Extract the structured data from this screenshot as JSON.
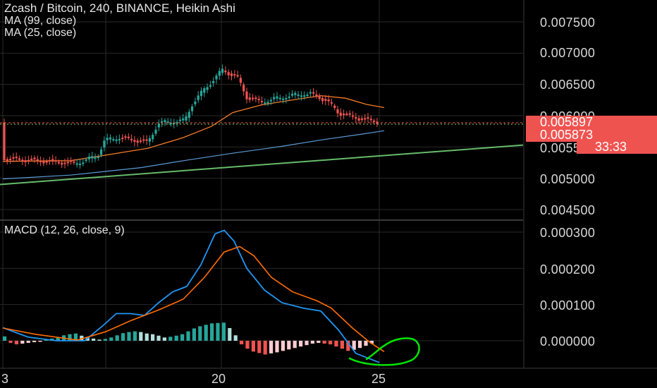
{
  "legend": {
    "title": "Zcash / Bitcoin, 240, BINANCE, Heikin Ashi",
    "ma99": "MA (99, close)",
    "ma25": "MA (25, close)",
    "macd": "MACD (12, 26, close, 9)"
  },
  "price_axis": {
    "ticks": [
      "0.007500",
      "0.007000",
      "0.006500",
      "0.006000",
      "0.005500",
      "0.005000",
      "0.004500"
    ],
    "last_price": "0.005897",
    "ma_value": "0.005873",
    "countdown": "33:33"
  },
  "macd_axis": {
    "ticks": [
      "0.000300",
      "0.000200",
      "0.000100",
      "0.000000"
    ]
  },
  "time_axis": {
    "labels": [
      "3",
      "20",
      "25"
    ]
  },
  "colors": {
    "up": "#26a69a",
    "down": "#ef5350",
    "ma99": "#5b9bd5",
    "ma25": "#f57c2a",
    "trendline": "#66bb6a",
    "macd_line": "#2196f3",
    "signal_line": "#ff6d00",
    "annotation": "#00e600"
  },
  "chart_data": [
    {
      "type": "candlestick",
      "title": "Zcash / Bitcoin, 240, BINANCE, Heikin Ashi",
      "ylim": [
        0.0043,
        0.0079
      ],
      "x": [
        "19",
        "20",
        "21",
        "22",
        "23",
        "24",
        "25",
        "26",
        "27",
        "28"
      ],
      "candles": {
        "open": [
          0.00534,
          0.0054,
          0.0058,
          0.0062,
          0.0064,
          0.0062,
          0.0063,
          0.0063,
          0.006,
          0.0059
        ],
        "close": [
          0.0054,
          0.0056,
          0.00575,
          0.006,
          0.0065,
          0.00665,
          0.0061,
          0.00625,
          0.0063,
          0.00595
        ],
        "trend": [
          "down",
          "up",
          "down",
          "up",
          "up",
          "up",
          "down",
          "up",
          "up",
          "down"
        ]
      },
      "series": [
        {
          "name": "MA (99, close)",
          "values": [
            0.005,
            0.00508,
            0.0052,
            0.00532,
            0.00545,
            0.00552,
            0.00558,
            0.00565,
            0.00572,
            0.00587
          ]
        },
        {
          "name": "MA (25, close)",
          "values": [
            0.00527,
            0.00535,
            0.00545,
            0.0056,
            0.00585,
            0.00605,
            0.00615,
            0.00625,
            0.0063,
            0.00612
          ]
        }
      ],
      "last_price": 0.005897
    },
    {
      "type": "macd",
      "title": "MACD (12, 26, close, 9)",
      "ylim": [
        -8.5e-05,
        0.00032
      ],
      "series": [
        {
          "name": "MACD",
          "values": [
            3.5e-05,
            5e-06,
            1e-05,
            8e-05,
            7.5e-05,
            0.00013,
            0.00024,
            0.00031,
            0.00018,
            0.0001,
            5e-05,
            -3e-05
          ]
        },
        {
          "name": "Signal",
          "values": [
            3.5e-05,
            1.5e-05,
            5e-06,
            5e-05,
            8e-05,
            0.000105,
            0.00019,
            0.00026,
            0.00021,
            0.00013,
            7e-05,
            -1.5e-05
          ]
        }
      ],
      "histogram": [
        1.2e-05,
        -6e-06,
        -1e-05,
        -8e-06,
        -6e-06,
        -4e-06,
        -2e-06,
        3e-06,
        6e-06,
        1e-05,
        1.5e-05,
        1.8e-05,
        2e-05,
        1.4e-05,
        1e-05,
        6e-06,
        3e-06,
        5e-06,
        9e-06,
        1.5e-05,
        2.1e-05,
        2.4e-05,
        2.6e-05,
        2.4e-05,
        2e-05,
        1.8e-05,
        1.4e-05,
        9e-06,
        1.1e-05,
        1.4e-05,
        1.8e-05,
        2.6e-05,
        3.4e-05,
        4e-05,
        4.4e-05,
        4.8e-05,
        4.9e-05,
        5e-05,
        3.5e-05,
        1.5e-05,
        -1e-05,
        -2.2e-05,
        -3e-05,
        -3.4e-05,
        -3.8e-05,
        -3.5e-05,
        -3.2e-05,
        -2.8e-05,
        -2.4e-05,
        -2e-05,
        -1.6e-05,
        -1.2e-05,
        -8e-06,
        -6e-06,
        -8e-06,
        -1e-05,
        -1.6e-05,
        -2.2e-05,
        -2.8e-05,
        -2.5e-05,
        -2e-05,
        -1.4e-05,
        -8e-06
      ]
    }
  ]
}
